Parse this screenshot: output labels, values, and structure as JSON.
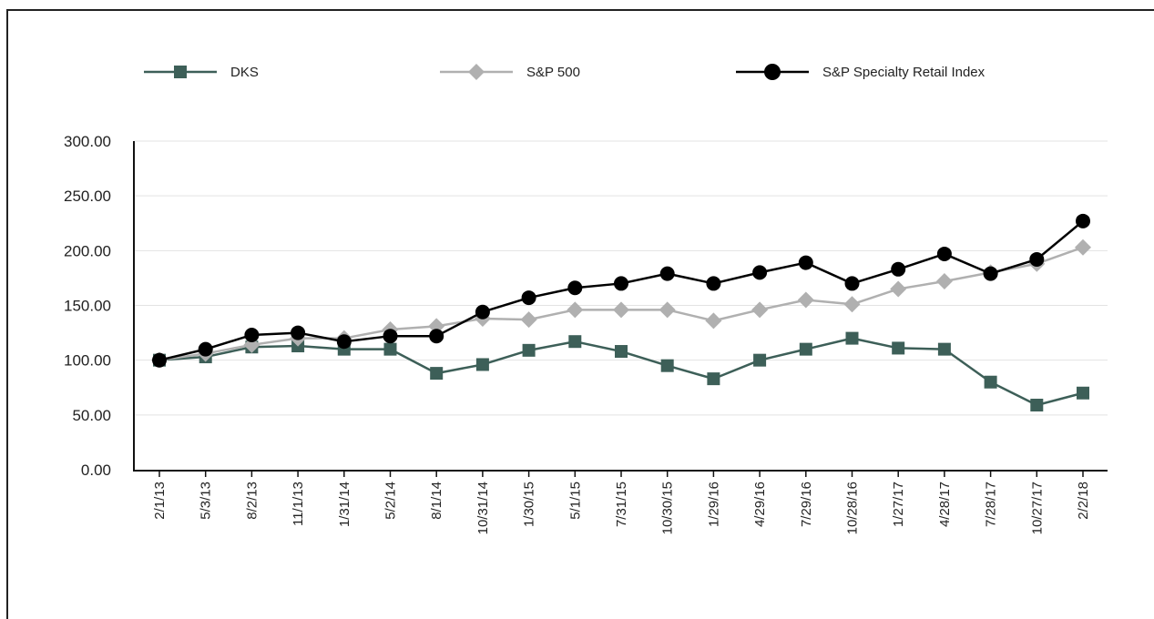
{
  "chart_data": {
    "type": "line",
    "title": "",
    "xlabel": "",
    "ylabel": "",
    "ylim": [
      0,
      300
    ],
    "yticks": [
      "0.00",
      "50.00",
      "100.00",
      "150.00",
      "200.00",
      "250.00",
      "300.00"
    ],
    "categories": [
      "2/1/13",
      "5/3/13",
      "8/2/13",
      "11/1/13",
      "1/31/14",
      "5/2/14",
      "8/1/14",
      "10/31/14",
      "1/30/15",
      "5/1/15",
      "7/31/15",
      "10/30/15",
      "1/29/16",
      "4/29/16",
      "7/29/16",
      "10/28/16",
      "1/27/17",
      "4/28/17",
      "7/28/17",
      "10/27/17",
      "2/2/18"
    ],
    "grid": "horizontal",
    "legend": "top",
    "series": [
      {
        "name": "DKS",
        "color": "#3d5f58",
        "marker": "square",
        "values": [
          100,
          103,
          112,
          113,
          110,
          110,
          88,
          96,
          109,
          117,
          108,
          95,
          83,
          100,
          110,
          120,
          111,
          110,
          80,
          59,
          70
        ]
      },
      {
        "name": "S&P 500",
        "color": "#b0b0b0",
        "marker": "diamond",
        "values": [
          100,
          106,
          114,
          120,
          120,
          128,
          131,
          138,
          137,
          146,
          146,
          146,
          136,
          146,
          155,
          151,
          165,
          172,
          180,
          188,
          203
        ]
      },
      {
        "name": "S&P Specialty Retail Index",
        "color": "#000000",
        "marker": "circle",
        "values": [
          100,
          110,
          123,
          125,
          117,
          122,
          122,
          144,
          157,
          166,
          170,
          179,
          170,
          180,
          189,
          170,
          183,
          197,
          179,
          192,
          227
        ]
      }
    ]
  }
}
